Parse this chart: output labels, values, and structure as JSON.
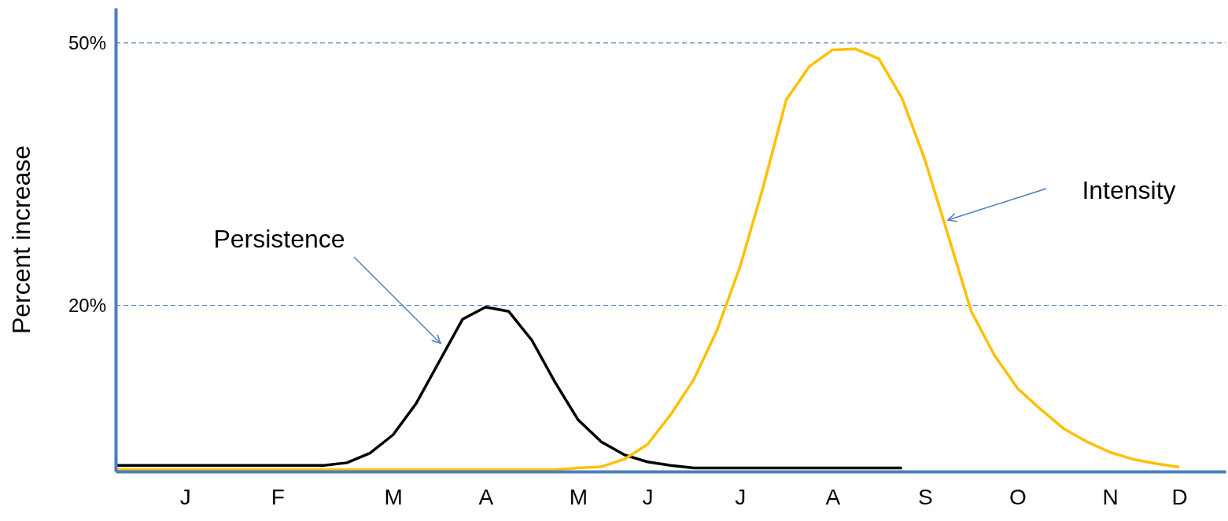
{
  "chart_data": {
    "type": "line",
    "ylabel": "Percent increase",
    "ylim": [
      1,
      54
    ],
    "categories": [
      null,
      null,
      null,
      "J",
      null,
      null,
      null,
      "F",
      null,
      null,
      null,
      null,
      "M",
      null,
      null,
      null,
      "A",
      null,
      null,
      null,
      "M",
      null,
      null,
      "J",
      null,
      null,
      null,
      "J",
      null,
      null,
      null,
      "A",
      null,
      null,
      null,
      "S",
      null,
      null,
      null,
      "O",
      null,
      null,
      null,
      "N",
      null,
      null,
      "D",
      null,
      null
    ],
    "yticks": [
      {
        "value": 20,
        "label": "20%"
      },
      {
        "value": 50,
        "label": "50%"
      }
    ],
    "grid": false,
    "marker": "none",
    "line_style": "solid",
    "ref_lines": [
      {
        "axis": "y",
        "value": 20,
        "color": "#4a7ebb",
        "line_style": "dashed"
      },
      {
        "axis": "y",
        "value": 50,
        "color": "#4a7ebb",
        "line_style": "dashed"
      }
    ],
    "series": [
      {
        "color": "#000000",
        "values": [
          1.7,
          1.7,
          1.7,
          1.7,
          1.7,
          1.7,
          1.7,
          1.7,
          1.7,
          1.7,
          2.0,
          3.1,
          5.2,
          8.8,
          13.6,
          18.4,
          19.8,
          19.3,
          16.0,
          11.2,
          6.9,
          4.4,
          2.9,
          2.1,
          1.7,
          1.4,
          1.4,
          1.4,
          1.4,
          1.4,
          1.4,
          1.4,
          1.4,
          1.4,
          1.4,
          null,
          null,
          null,
          null,
          null,
          null,
          null,
          null,
          null,
          null,
          null,
          null,
          null,
          null
        ]
      },
      {
        "color": "#ffc000",
        "values": [
          1.2,
          1.2,
          1.2,
          1.2,
          1.2,
          1.2,
          1.2,
          1.2,
          1.2,
          1.2,
          1.2,
          1.2,
          1.2,
          1.2,
          1.2,
          1.2,
          1.2,
          1.2,
          1.2,
          1.2,
          1.4,
          1.55,
          2.4,
          4.1,
          7.5,
          11.5,
          17.1,
          24.4,
          33.5,
          43.5,
          47.3,
          49.2,
          49.3,
          48.2,
          43.7,
          36.6,
          28.0,
          19.3,
          14.3,
          10.5,
          8.1,
          5.9,
          4.4,
          3.2,
          2.4,
          1.9,
          1.5,
          null,
          null
        ]
      }
    ],
    "annotations": [
      "Persistence",
      "Intensity"
    ]
  }
}
